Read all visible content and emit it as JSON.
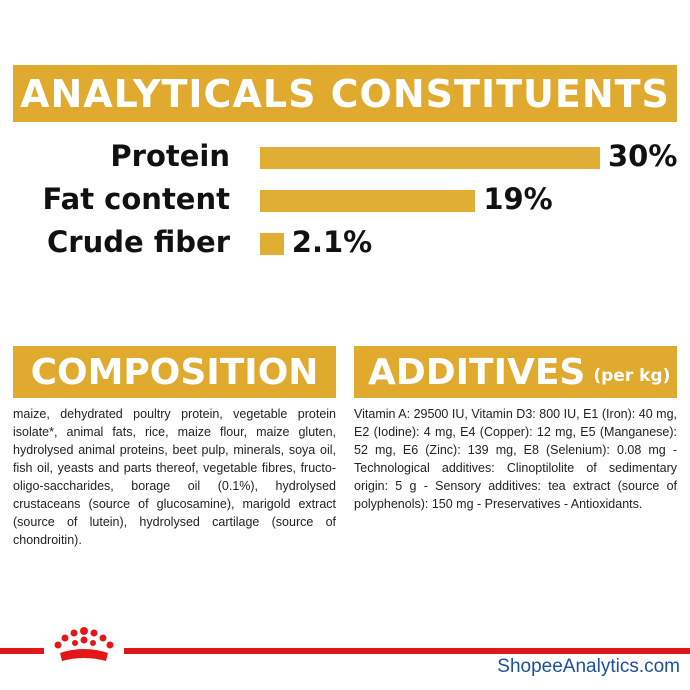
{
  "chart_data": {
    "type": "bar",
    "title": "ANALYTICALS CONSTITUENTS",
    "categories": [
      "Protein",
      "Fat content",
      "Crude fiber"
    ],
    "values": [
      30,
      19,
      2.1
    ],
    "value_labels": [
      "30%",
      "19%",
      "2.1%"
    ],
    "color": "#e1ae35"
  },
  "composition": {
    "title": "COMPOSITION",
    "text": "maize, dehydrated poultry protein, vegetable protein isolate*, animal fats, rice, maize flour, maize gluten, hydrolysed animal proteins, beet pulp, minerals, soya oil, fish oil, yeasts and parts thereof, vegetable fibres, fructo-oligo-saccharides, borage oil (0.1%), hydrolysed crustaceans (source of glucosamine), marigold extract (source of lutein), hydrolysed cartilage (source of chondroitin)."
  },
  "additives": {
    "title": "ADDITIVES",
    "subtitle": "(per kg)",
    "text": "Vitamin A: 29500 IU, Vitamin D3: 800 IU, E1 (Iron): 40 mg, E2 (Iodine): 4 mg, E4 (Copper): 12 mg, E5 (Manganese): 52 mg, E6 (Zinc): 139 mg, E8 (Selenium): 0.08 mg - Technological additives: Clinoptilolite of sedimentary origin: 5 g - Sensory additives: tea extract (source of polyphenols): 150 mg - Preservatives - Antioxidants."
  },
  "footer": {
    "watermark": "ShopeeAnalytics.com"
  }
}
